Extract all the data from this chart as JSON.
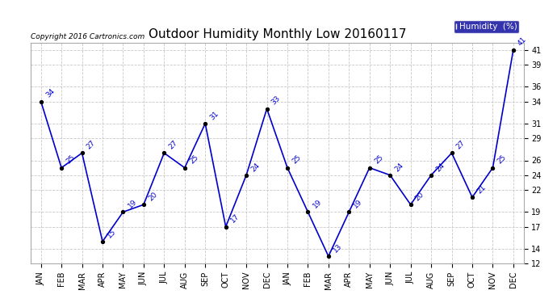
{
  "title": "Outdoor Humidity Monthly Low 20160117",
  "copyright": "Copyright 2016 Cartronics.com",
  "legend_label": "Humidity  (%)",
  "months": [
    "JAN",
    "FEB",
    "MAR",
    "APR",
    "MAY",
    "JUN",
    "JUL",
    "AUG",
    "SEP",
    "OCT",
    "NOV",
    "DEC",
    "JAN",
    "FEB",
    "MAR",
    "APR",
    "MAY",
    "JUN",
    "JUL",
    "AUG",
    "SEP",
    "OCT",
    "NOV",
    "DEC"
  ],
  "values": [
    34,
    25,
    27,
    15,
    19,
    20,
    27,
    25,
    31,
    17,
    24,
    33,
    25,
    19,
    13,
    19,
    25,
    24,
    20,
    24,
    27,
    21,
    25,
    41
  ],
  "line_color": "#0000cc",
  "marker_color": "#000000",
  "bg_color": "#ffffff",
  "grid_color": "#c8c8c8",
  "ylim": [
    12,
    42
  ],
  "yticks": [
    12,
    14,
    17,
    19,
    22,
    24,
    26,
    29,
    31,
    34,
    36,
    39,
    41
  ],
  "title_fontsize": 11,
  "tick_fontsize": 7,
  "anno_fontsize": 6.5,
  "copyright_fontsize": 6.5,
  "legend_fontsize": 7.5
}
